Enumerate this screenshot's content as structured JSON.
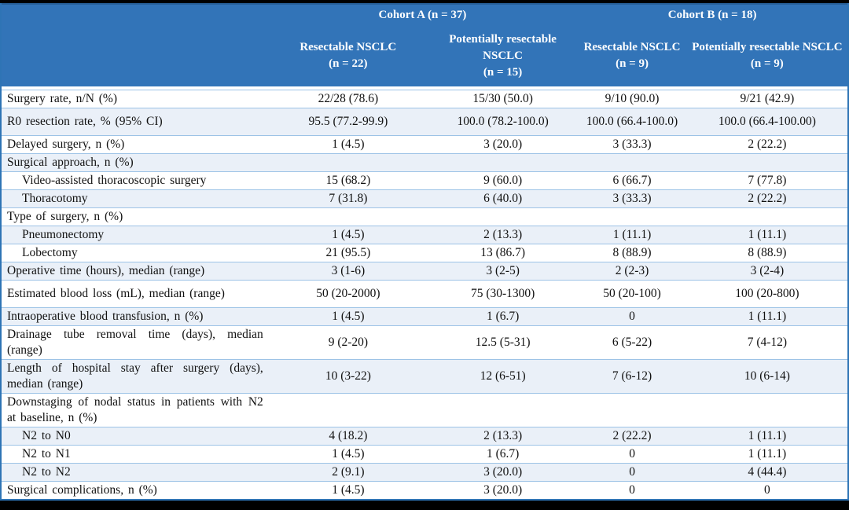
{
  "table": {
    "groups": [
      {
        "label": "Cohort A (n = 37)"
      },
      {
        "label": "Cohort B (n = 18)"
      }
    ],
    "columns": [
      {
        "name": "Resectable NSCLC",
        "n": "(n = 22)"
      },
      {
        "name": "Potentially resectable NSCLC",
        "n": "(n = 15)"
      },
      {
        "name": "Resectable NSCLC",
        "n": "(n = 9)"
      },
      {
        "name": "Potentially resectable NSCLC",
        "n": "(n = 9)"
      }
    ],
    "rows": [
      {
        "label": "Surgery rate, n/N (%)",
        "indent": false,
        "shaded": false,
        "tall": false,
        "values": [
          "22/28 (78.6)",
          "15/30 (50.0)",
          "9/10 (90.0)",
          "9/21 (42.9)"
        ]
      },
      {
        "label": "R0 resection rate, % (95% CI)",
        "indent": false,
        "shaded": true,
        "tall": true,
        "values": [
          "95.5 (77.2-99.9)",
          "100.0 (78.2-100.0)",
          "100.0 (66.4-100.0)",
          "100.0 (66.4-100.00)"
        ]
      },
      {
        "label": "Delayed surgery, n (%)",
        "indent": false,
        "shaded": false,
        "tall": false,
        "values": [
          "1 (4.5)",
          "3 (20.0)",
          "3 (33.3)",
          "2 (22.2)"
        ]
      },
      {
        "label": "Surgical approach, n (%)",
        "indent": false,
        "shaded": true,
        "tall": false,
        "values": [
          "",
          "",
          "",
          ""
        ]
      },
      {
        "label": "Video-assisted thoracoscopic surgery",
        "indent": true,
        "shaded": false,
        "tall": false,
        "values": [
          "15 (68.2)",
          "9 (60.0)",
          "6 (66.7)",
          "7 (77.8)"
        ]
      },
      {
        "label": "Thoracotomy",
        "indent": true,
        "shaded": true,
        "tall": false,
        "values": [
          "7 (31.8)",
          "6 (40.0)",
          "3 (33.3)",
          "2 (22.2)"
        ]
      },
      {
        "label": "Type of surgery, n (%)",
        "indent": false,
        "shaded": false,
        "tall": false,
        "values": [
          "",
          "",
          "",
          ""
        ]
      },
      {
        "label": "Pneumonectomy",
        "indent": true,
        "shaded": true,
        "tall": false,
        "values": [
          "1 (4.5)",
          "2 (13.3)",
          "1 (11.1)",
          "1 (11.1)"
        ]
      },
      {
        "label": "Lobectomy",
        "indent": true,
        "shaded": false,
        "tall": false,
        "values": [
          "21 (95.5)",
          "13 (86.7)",
          "8 (88.9)",
          "8 (88.9)"
        ]
      },
      {
        "label": "Operative time (hours), median (range)",
        "indent": false,
        "shaded": true,
        "tall": false,
        "values": [
          "3 (1-6)",
          "3 (2-5)",
          "2 (2-3)",
          "3 (2-4)"
        ]
      },
      {
        "label": "Estimated blood loss (mL), median (range)",
        "indent": false,
        "shaded": false,
        "tall": true,
        "values": [
          "50 (20-2000)",
          "75 (30-1300)",
          "50 (20-100)",
          "100 (20-800)"
        ]
      },
      {
        "label": "Intraoperative blood transfusion, n (%)",
        "indent": false,
        "shaded": true,
        "tall": false,
        "values": [
          "1 (4.5)",
          "1 (6.7)",
          "0",
          "1 (11.1)"
        ]
      },
      {
        "label": "Drainage tube removal time (days), median (range)",
        "indent": false,
        "shaded": false,
        "tall": true,
        "values": [
          "9 (2-20)",
          "12.5 (5-31)",
          "6 (5-22)",
          "7 (4-12)"
        ]
      },
      {
        "label": "Length of hospital stay after surgery (days), median (range)",
        "indent": false,
        "shaded": true,
        "tall": true,
        "values": [
          "10 (3-22)",
          "12 (6-51)",
          "7 (6-12)",
          "10 (6-14)"
        ]
      },
      {
        "label": "Downstaging of nodal status in patients with N2 at baseline, n (%)",
        "indent": false,
        "shaded": false,
        "tall": true,
        "values": [
          "",
          "",
          "",
          ""
        ]
      },
      {
        "label": "N2 to N0",
        "indent": true,
        "shaded": true,
        "tall": false,
        "values": [
          "4 (18.2)",
          "2 (13.3)",
          "2 (22.2)",
          "1 (11.1)"
        ]
      },
      {
        "label": "N2 to N1",
        "indent": true,
        "shaded": false,
        "tall": false,
        "values": [
          "1 (4.5)",
          "1 (6.7)",
          "0",
          "1 (11.1)"
        ]
      },
      {
        "label": "N2 to N2",
        "indent": true,
        "shaded": true,
        "tall": false,
        "values": [
          "2 (9.1)",
          "3 (20.0)",
          "0",
          "4 (44.4)"
        ]
      },
      {
        "label": "Surgical complications, n (%)",
        "indent": false,
        "shaded": false,
        "tall": false,
        "values": [
          "1 (4.5)",
          "3 (20.0)",
          "0",
          "0"
        ]
      }
    ],
    "colors": {
      "header_bg": "#3274B8",
      "outer_border": "#2E74B5",
      "row_border": "#9DC3E6",
      "stripe_bg": "#EAF0F8"
    }
  }
}
